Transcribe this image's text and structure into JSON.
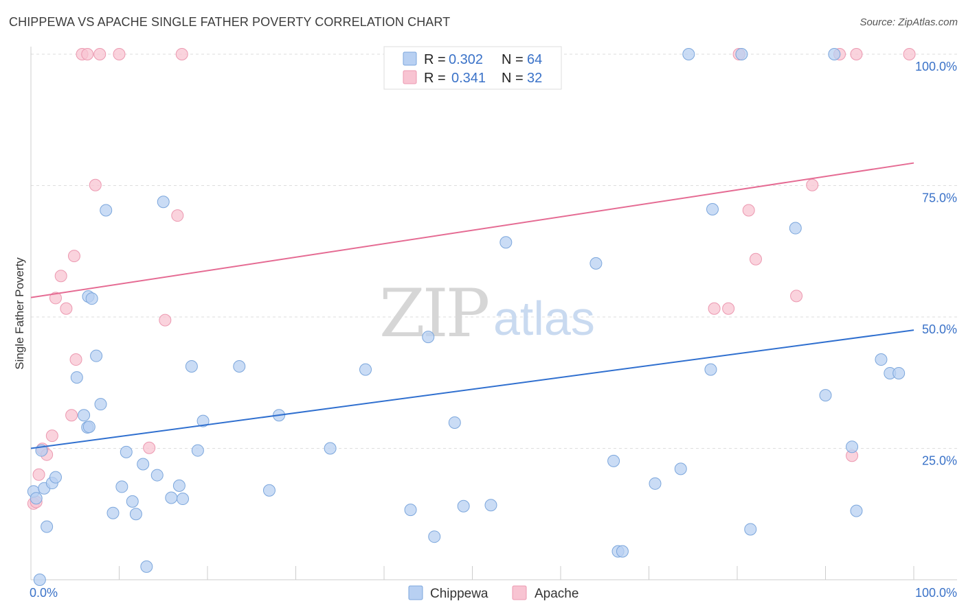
{
  "title": "CHIPPEWA VS APACHE SINGLE FATHER POVERTY CORRELATION CHART",
  "source": "Source: ZipAtlas.com",
  "watermark": {
    "zip": "ZIP",
    "atlas": "atlas"
  },
  "colors": {
    "chippewa_fill": "#b8d0f2",
    "chippewa_stroke": "#7ba6dc",
    "chippewa_line": "#2f6fcf",
    "apache_fill": "#f8c4d2",
    "apache_stroke": "#ec98b0",
    "apache_line": "#e56b93",
    "grid": "#dddddd",
    "tick_label": "#3a72c8"
  },
  "legend": {
    "r_label": "R =",
    "n_label": "N =",
    "series": [
      {
        "name": "Chippewa",
        "r": "0.302",
        "n": "64"
      },
      {
        "name": "Apache",
        "r": "0.341",
        "n": "32"
      }
    ]
  },
  "chart_data": {
    "type": "scatter",
    "title": "CHIPPEWA VS APACHE SINGLE FATHER POVERTY CORRELATION CHART",
    "xlabel": "",
    "ylabel": "Single Father Poverty",
    "xlim": [
      0,
      100
    ],
    "ylim": [
      0,
      100
    ],
    "x_tick_labels": [
      "0.0%",
      "100.0%"
    ],
    "y_ticks": [
      25,
      50,
      75,
      100
    ],
    "y_tick_labels": [
      "25.0%",
      "50.0%",
      "75.0%",
      "100.0%"
    ],
    "grid": true,
    "legend_position": "top-center",
    "series": [
      {
        "name": "Chippewa",
        "trend": {
          "x": [
            0,
            100
          ],
          "y": [
            25.0,
            47.5
          ]
        },
        "points": [
          [
            0.3,
            16.8
          ],
          [
            0.6,
            15.5
          ],
          [
            1.2,
            24.6
          ],
          [
            1.5,
            17.4
          ],
          [
            1.8,
            10.1
          ],
          [
            2.4,
            18.4
          ],
          [
            2.8,
            19.5
          ],
          [
            5.2,
            38.5
          ],
          [
            6.0,
            31.3
          ],
          [
            6.4,
            29.0
          ],
          [
            6.6,
            29.1
          ],
          [
            6.5,
            53.9
          ],
          [
            6.9,
            53.5
          ],
          [
            7.4,
            42.6
          ],
          [
            7.9,
            33.4
          ],
          [
            8.5,
            70.3
          ],
          [
            9.3,
            12.7
          ],
          [
            10.3,
            17.7
          ],
          [
            10.8,
            24.3
          ],
          [
            11.5,
            14.9
          ],
          [
            11.9,
            12.5
          ],
          [
            12.7,
            22.0
          ],
          [
            13.1,
            2.5
          ],
          [
            14.3,
            19.9
          ],
          [
            15.0,
            71.9
          ],
          [
            15.9,
            15.6
          ],
          [
            16.8,
            17.9
          ],
          [
            17.2,
            15.4
          ],
          [
            18.2,
            40.6
          ],
          [
            18.9,
            24.6
          ],
          [
            19.5,
            30.2
          ],
          [
            23.6,
            40.6
          ],
          [
            27.0,
            17.0
          ],
          [
            28.1,
            31.3
          ],
          [
            33.9,
            25.0
          ],
          [
            37.9,
            40.0
          ],
          [
            43.0,
            13.3
          ],
          [
            45.0,
            46.2
          ],
          [
            45.7,
            8.2
          ],
          [
            46.0,
            100.0
          ],
          [
            48.0,
            29.9
          ],
          [
            49.0,
            14.0
          ],
          [
            52.1,
            14.2
          ],
          [
            53.8,
            64.2
          ],
          [
            64.0,
            60.2
          ],
          [
            66.0,
            22.6
          ],
          [
            66.5,
            5.4
          ],
          [
            67.0,
            5.4
          ],
          [
            70.7,
            18.3
          ],
          [
            73.6,
            21.1
          ],
          [
            74.5,
            100.0
          ],
          [
            77.0,
            40.0
          ],
          [
            77.2,
            70.5
          ],
          [
            80.5,
            100.0
          ],
          [
            81.5,
            9.6
          ],
          [
            86.6,
            66.9
          ],
          [
            90.0,
            35.1
          ],
          [
            91.0,
            100.0
          ],
          [
            93.0,
            25.3
          ],
          [
            93.5,
            13.1
          ],
          [
            96.3,
            41.9
          ],
          [
            97.3,
            39.3
          ],
          [
            98.3,
            39.3
          ],
          [
            1.0,
            0.0
          ]
        ]
      },
      {
        "name": "Apache",
        "trend": {
          "x": [
            0,
            100
          ],
          "y": [
            53.7,
            79.3
          ]
        },
        "points": [
          [
            0.3,
            14.5
          ],
          [
            0.6,
            14.8
          ],
          [
            0.9,
            20.0
          ],
          [
            1.3,
            24.9
          ],
          [
            1.8,
            23.8
          ],
          [
            2.4,
            27.4
          ],
          [
            2.8,
            53.6
          ],
          [
            3.4,
            57.8
          ],
          [
            4.0,
            51.6
          ],
          [
            4.6,
            31.3
          ],
          [
            5.1,
            41.9
          ],
          [
            4.9,
            61.6
          ],
          [
            5.8,
            100.0
          ],
          [
            6.4,
            100.0
          ],
          [
            7.3,
            75.1
          ],
          [
            7.8,
            100.0
          ],
          [
            10.0,
            100.0
          ],
          [
            13.4,
            25.1
          ],
          [
            15.2,
            49.4
          ],
          [
            16.6,
            69.3
          ],
          [
            17.1,
            100.0
          ],
          [
            77.4,
            51.6
          ],
          [
            79.0,
            51.6
          ],
          [
            80.2,
            100.0
          ],
          [
            81.3,
            70.3
          ],
          [
            82.1,
            61.0
          ],
          [
            86.7,
            54.0
          ],
          [
            88.5,
            75.1
          ],
          [
            91.6,
            100.0
          ],
          [
            93.5,
            100.0
          ],
          [
            93.0,
            23.6
          ],
          [
            99.5,
            100.0
          ]
        ]
      }
    ]
  }
}
